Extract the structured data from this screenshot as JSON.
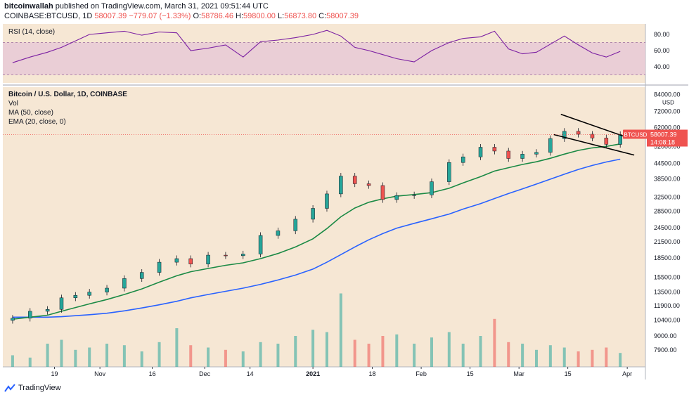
{
  "header": {
    "publisher": "bitcoinwallah",
    "published_text": "published on TradingView.com, March 31, 2021 09:51:44 UTC",
    "symbol": "COINBASE:BTCUSD, 1D",
    "last": "58007.39",
    "change": "−779.07 (−1.33%)",
    "o_label": "O:",
    "o": "58786.46",
    "h_label": "H:",
    "h": "59800.00",
    "l_label": "L:",
    "l": "56873.80",
    "c_label": "C:",
    "c": "58007.39"
  },
  "legend": {
    "rsi": "RSI (14, close)",
    "title": "Bitcoin / U.S. Dollar, 1D, COINBASE",
    "vol": "Vol",
    "ma": "MA (50, close)",
    "ema": "EMA (20, close, 0)"
  },
  "price_tag": {
    "symbol": "BTCUSD",
    "price": "58007.39",
    "countdown": "14:08:18"
  },
  "footer": {
    "brand": "TradingView"
  },
  "colors": {
    "up": "#26a69a",
    "down": "#ef5350",
    "ma": "#2962ff",
    "ema": "#1b8a45",
    "rsi": "#7b1fa2",
    "bg": "#f6e7d4",
    "rsi_band": "#e8c9d6"
  },
  "chart_data": [
    {
      "type": "line",
      "title": "RSI (14, close)",
      "yticks": [
        "80.00",
        "60.00",
        "40.00"
      ],
      "ylim": [
        20,
        93
      ],
      "band": [
        30,
        70
      ],
      "x": [
        "2020-10-07",
        "2020-10-12",
        "2020-10-17",
        "2020-10-21",
        "2020-10-25",
        "2020-10-29",
        "2020-11-03",
        "2020-11-08",
        "2020-11-13",
        "2020-11-18",
        "2020-11-23",
        "2020-11-27",
        "2020-12-02",
        "2020-12-07",
        "2020-12-12",
        "2020-12-17",
        "2020-12-22",
        "2020-12-27",
        "2021-01-01",
        "2021-01-05",
        "2021-01-09",
        "2021-01-13",
        "2021-01-17",
        "2021-01-21",
        "2021-01-25",
        "2021-01-30",
        "2021-02-04",
        "2021-02-09",
        "2021-02-13",
        "2021-02-18",
        "2021-02-22",
        "2021-02-26",
        "2021-03-02",
        "2021-03-06",
        "2021-03-10",
        "2021-03-14",
        "2021-03-18",
        "2021-03-22",
        "2021-03-26",
        "2021-03-30"
      ],
      "series": [
        {
          "values": [
            45,
            52,
            58,
            64,
            72,
            80,
            82,
            84,
            79,
            83,
            82,
            60,
            63,
            67,
            52,
            71,
            73,
            76,
            80,
            85,
            78,
            64,
            60,
            55,
            50,
            46,
            60,
            70,
            75,
            77,
            84,
            62,
            56,
            58,
            68,
            78,
            67,
            57,
            52,
            59
          ]
        }
      ]
    },
    {
      "type": "candlestick",
      "title": "Bitcoin / U.S. Dollar, 1D, COINBASE",
      "ylabel": "USD",
      "yticks": [
        "84000.00",
        "72000.00",
        "62000.00",
        "52000.00",
        "44500.00",
        "38500.00",
        "32500.00",
        "28500.00",
        "24500.00",
        "21500.00",
        "18500.00",
        "15500.00",
        "13500.00",
        "11900.00",
        "10400.00",
        "9000.00",
        "7900.00"
      ],
      "xticks": [
        "19",
        "Nov",
        "16",
        "Dec",
        "14",
        "2021",
        "18",
        "Feb",
        "15",
        "Mar",
        "15",
        "Apr"
      ],
      "x": [
        "2020-10-07",
        "2020-10-12",
        "2020-10-17",
        "2020-10-21",
        "2020-10-25",
        "2020-10-29",
        "2020-11-03",
        "2020-11-08",
        "2020-11-13",
        "2020-11-18",
        "2020-11-23",
        "2020-11-27",
        "2020-12-02",
        "2020-12-07",
        "2020-12-12",
        "2020-12-17",
        "2020-12-22",
        "2020-12-27",
        "2021-01-01",
        "2021-01-05",
        "2021-01-09",
        "2021-01-13",
        "2021-01-17",
        "2021-01-21",
        "2021-01-25",
        "2021-01-30",
        "2021-02-04",
        "2021-02-09",
        "2021-02-13",
        "2021-02-18",
        "2021-02-22",
        "2021-02-26",
        "2021-03-02",
        "2021-03-06",
        "2021-03-10",
        "2021-03-14",
        "2021-03-18",
        "2021-03-22",
        "2021-03-26",
        "2021-03-30"
      ],
      "series": [
        {
          "name": "BTCUSD close",
          "values": [
            10600,
            11300,
            11500,
            12800,
            13100,
            13500,
            14000,
            15300,
            16200,
            17800,
            18400,
            17500,
            19000,
            18900,
            19200,
            22800,
            23800,
            26500,
            29300,
            33500,
            39500,
            36800,
            36200,
            31800,
            33000,
            33200,
            37500,
            44800,
            47200,
            51600,
            49800,
            46500,
            48400,
            49200,
            55900,
            59800,
            58200,
            56200,
            53000,
            58007
          ]
        },
        {
          "name": "EMA (20, close, 0)",
          "values": [
            10500,
            10700,
            10900,
            11300,
            11700,
            12100,
            12600,
            13200,
            13900,
            14800,
            15700,
            16300,
            16800,
            17300,
            17700,
            18400,
            19300,
            20500,
            22100,
            24300,
            27100,
            29400,
            31000,
            32000,
            32800,
            33300,
            33900,
            35300,
            37100,
            39300,
            41400,
            42700,
            44000,
            45100,
            46600,
            48400,
            50100,
            51300,
            52000,
            53200
          ]
        },
        {
          "name": "MA (50, close)",
          "values": [
            10700,
            10700,
            10700,
            10750,
            10850,
            10950,
            11100,
            11350,
            11650,
            12000,
            12400,
            12800,
            13200,
            13600,
            14000,
            14500,
            15100,
            15800,
            16700,
            17800,
            19100,
            20500,
            21900,
            23200,
            24400,
            25500,
            26600,
            27800,
            29100,
            30600,
            32100,
            33600,
            35100,
            36700,
            38400,
            40200,
            42000,
            43600,
            45000,
            46200
          ]
        }
      ]
    },
    {
      "type": "bar",
      "title": "Vol",
      "x": [
        "2020-10-07",
        "2020-10-12",
        "2020-10-17",
        "2020-10-21",
        "2020-10-25",
        "2020-10-29",
        "2020-11-03",
        "2020-11-08",
        "2020-11-13",
        "2020-11-18",
        "2020-11-23",
        "2020-11-27",
        "2020-12-02",
        "2020-12-07",
        "2020-12-12",
        "2020-12-17",
        "2020-12-22",
        "2020-12-27",
        "2021-01-01",
        "2021-01-05",
        "2021-01-09",
        "2021-01-13",
        "2021-01-17",
        "2021-01-21",
        "2021-01-25",
        "2021-01-30",
        "2021-02-04",
        "2021-02-09",
        "2021-02-13",
        "2021-02-18",
        "2021-02-22",
        "2021-02-26",
        "2021-03-02",
        "2021-03-06",
        "2021-03-10",
        "2021-03-14",
        "2021-03-18",
        "2021-03-22",
        "2021-03-26",
        "2021-03-30"
      ],
      "values": [
        0.15,
        0.12,
        0.3,
        0.35,
        0.22,
        0.25,
        0.3,
        0.28,
        0.2,
        0.32,
        0.5,
        0.28,
        0.25,
        0.22,
        0.2,
        0.32,
        0.3,
        0.4,
        0.48,
        0.45,
        0.95,
        0.35,
        0.3,
        0.4,
        0.42,
        0.3,
        0.38,
        0.45,
        0.3,
        0.4,
        0.62,
        0.32,
        0.3,
        0.22,
        0.28,
        0.25,
        0.2,
        0.22,
        0.25,
        0.18
      ]
    }
  ]
}
